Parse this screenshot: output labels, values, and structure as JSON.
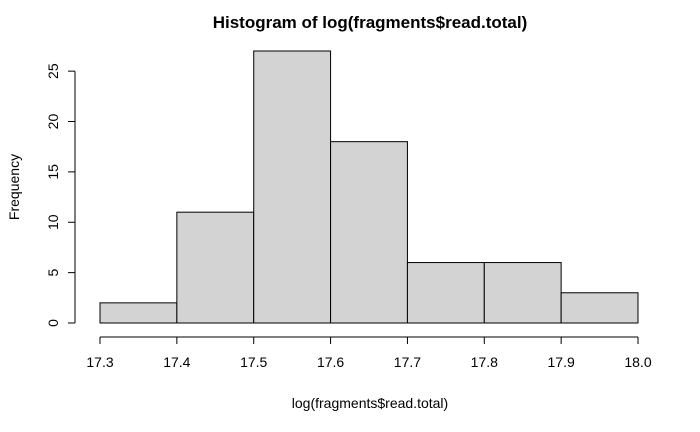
{
  "chart_data": {
    "type": "bar",
    "title": "Histogram of log(fragments$read.total)",
    "xlabel": "log(fragments$read.total)",
    "ylabel": "Frequency",
    "bins": [
      {
        "start": 17.3,
        "end": 17.4,
        "count": 2
      },
      {
        "start": 17.4,
        "end": 17.5,
        "count": 11
      },
      {
        "start": 17.5,
        "end": 17.6,
        "count": 27
      },
      {
        "start": 17.6,
        "end": 17.7,
        "count": 18
      },
      {
        "start": 17.7,
        "end": 17.8,
        "count": 6
      },
      {
        "start": 17.8,
        "end": 17.9,
        "count": 6
      },
      {
        "start": 17.9,
        "end": 18.0,
        "count": 3
      }
    ],
    "x_ticks": [
      "17.3",
      "17.4",
      "17.5",
      "17.6",
      "17.7",
      "17.8",
      "17.9",
      "18.0"
    ],
    "y_ticks": [
      "0",
      "5",
      "10",
      "15",
      "20",
      "25"
    ],
    "xlim": [
      17.3,
      18.0
    ],
    "ylim": [
      0,
      27
    ],
    "grid": false,
    "bar_color": "#d3d3d3",
    "edge_color": "#000000"
  }
}
